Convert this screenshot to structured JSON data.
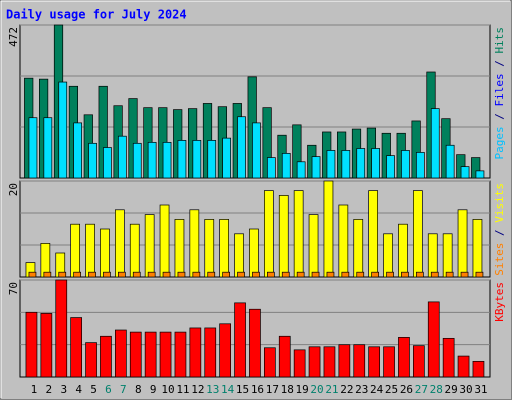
{
  "chart_data": [
    {
      "type": "bar",
      "title": "Daily usage for July 2024",
      "ylim": [
        0,
        472
      ],
      "yticks": [
        472
      ],
      "legend": [
        {
          "text": "Pages",
          "color": "#00c0ff"
        },
        {
          "text": " / ",
          "color": "#000080"
        },
        {
          "text": "Files",
          "color": "#0000ff"
        },
        {
          "text": " / ",
          "color": "#000080"
        },
        {
          "text": "Hits",
          "color": "#00805c"
        }
      ],
      "series": [
        {
          "color": "#00805c",
          "values": [
            308,
            305,
            472,
            283,
            195,
            283,
            223,
            245,
            217,
            217,
            211,
            214,
            230,
            220,
            230,
            312,
            217,
            132,
            164,
            101,
            142,
            142,
            151,
            154,
            138,
            138,
            176,
            327,
            183,
            72,
            63
          ]
        },
        {
          "color": "#00e0ff",
          "values": [
            186,
            186,
            296,
            170,
            107,
            94,
            129,
            107,
            110,
            110,
            116,
            116,
            116,
            123,
            189,
            170,
            63,
            76,
            50,
            66,
            85,
            85,
            91,
            91,
            69,
            85,
            79,
            214,
            101,
            35,
            22
          ]
        }
      ]
    },
    {
      "type": "bar",
      "ylim": [
        0,
        20
      ],
      "yticks": [
        20
      ],
      "legend": [
        {
          "text": "Sites",
          "color": "#ff8000"
        },
        {
          "text": " / ",
          "color": "#000080"
        },
        {
          "text": "Visits",
          "color": "#ffff00"
        }
      ],
      "series": [
        {
          "color": "#ffff00",
          "values": [
            3,
            7,
            5,
            11,
            11,
            10,
            14,
            11,
            13,
            15,
            12,
            14,
            12,
            12,
            9,
            10,
            18,
            17,
            18,
            13,
            20,
            15,
            12,
            18,
            9,
            11,
            18,
            9,
            9,
            14,
            12
          ]
        },
        {
          "color": "#ff8000",
          "values": [
            1,
            1,
            1,
            1,
            1,
            1,
            1,
            1,
            1,
            1,
            1,
            1,
            1,
            1,
            1,
            1,
            1,
            1,
            1,
            1,
            1,
            1,
            1,
            1,
            1,
            1,
            1,
            1,
            1,
            1,
            1
          ]
        }
      ]
    },
    {
      "type": "bar",
      "ylim": [
        0,
        70
      ],
      "yticks": [
        70
      ],
      "legend": [
        {
          "text": "KBytes",
          "color": "#ff0000"
        }
      ],
      "categories": [
        "1",
        "2",
        "3",
        "4",
        "5",
        "6",
        "7",
        "8",
        "9",
        "10",
        "11",
        "12",
        "13",
        "14",
        "15",
        "16",
        "17",
        "18",
        "19",
        "20",
        "21",
        "22",
        "23",
        "24",
        "25",
        "26",
        "27",
        "28",
        "29",
        "30",
        "31"
      ],
      "highlight": [
        "6",
        "7",
        "13",
        "14",
        "20",
        "21",
        "27",
        "28"
      ],
      "highlight_color": "#00806c",
      "series": [
        {
          "color": "#ff0000",
          "values": [
            46.7,
            45.9,
            70,
            42.9,
            24.8,
            29.4,
            33.9,
            32.4,
            32.4,
            32.4,
            32.4,
            35.4,
            35.4,
            38.4,
            53.5,
            48.9,
            21.1,
            29.4,
            19.6,
            21.8,
            21.8,
            23.3,
            23.3,
            21.8,
            21.8,
            28.6,
            22.6,
            54.2,
            27.9,
            15.1,
            11.3
          ]
        }
      ]
    }
  ]
}
